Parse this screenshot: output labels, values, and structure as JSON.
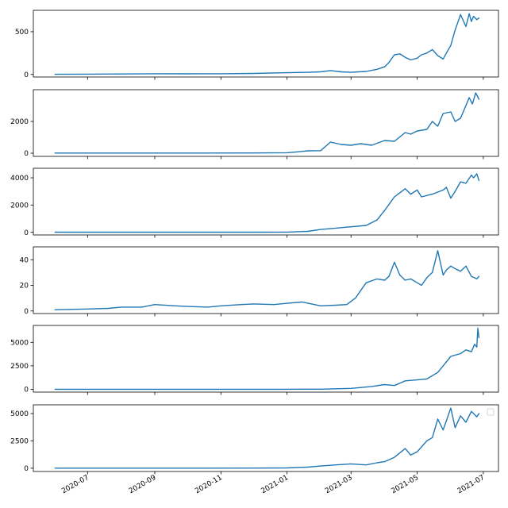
{
  "colors": {
    "line": "#1f77b4",
    "axes": "#000000",
    "background": "#ffffff"
  },
  "x_axis": {
    "type": "date",
    "range": [
      "2020-05-12",
      "2021-07-15"
    ],
    "ticks": [
      {
        "date": "2020-07-01",
        "label": "2020-07"
      },
      {
        "date": "2020-09-01",
        "label": "2020-09"
      },
      {
        "date": "2020-11-01",
        "label": "2020-11"
      },
      {
        "date": "2021-01-01",
        "label": "2021-01"
      },
      {
        "date": "2021-03-01",
        "label": "2021-03"
      },
      {
        "date": "2021-05-01",
        "label": "2021-05"
      },
      {
        "date": "2021-07-01",
        "label": "2021-07"
      }
    ],
    "label_rotation": "30 degrees, shown only on bottom panel",
    "sharex": true
  },
  "chart_data": [
    {
      "type": "line",
      "ylim": [
        -30,
        750
      ],
      "yticks": [
        {
          "value": 0,
          "label": "0"
        },
        {
          "value": 500,
          "label": "500"
        }
      ],
      "grid": false,
      "series": [
        {
          "x": [
            "2020-06-01",
            "2020-07-01",
            "2020-08-01",
            "2020-09-01",
            "2020-10-01",
            "2020-11-01",
            "2020-12-01",
            "2021-01-01",
            "2021-01-20",
            "2021-02-01",
            "2021-02-10",
            "2021-02-20",
            "2021-03-01",
            "2021-03-15",
            "2021-03-25",
            "2021-04-01",
            "2021-04-05",
            "2021-04-10",
            "2021-04-15",
            "2021-04-20",
            "2021-04-25",
            "2021-05-01",
            "2021-05-05",
            "2021-05-10",
            "2021-05-15",
            "2021-05-20",
            "2021-05-25",
            "2021-05-28",
            "2021-06-01",
            "2021-06-05",
            "2021-06-10",
            "2021-06-15",
            "2021-06-18",
            "2021-06-20",
            "2021-06-22",
            "2021-06-25",
            "2021-06-27"
          ],
          "y": [
            2,
            3,
            5,
            8,
            7,
            8,
            12,
            20,
            25,
            30,
            45,
            30,
            25,
            35,
            60,
            90,
            140,
            230,
            240,
            200,
            170,
            190,
            230,
            250,
            290,
            220,
            180,
            250,
            340,
            520,
            700,
            560,
            710,
            620,
            680,
            640,
            660
          ]
        }
      ]
    },
    {
      "type": "line",
      "ylim": [
        -200,
        4000
      ],
      "yticks": [
        {
          "value": 0,
          "label": "0"
        },
        {
          "value": 2000,
          "label": "2000"
        }
      ],
      "grid": false,
      "series": [
        {
          "x": [
            "2020-06-01",
            "2020-08-01",
            "2020-10-01",
            "2020-12-01",
            "2021-01-01",
            "2021-01-10",
            "2021-01-20",
            "2021-02-01",
            "2021-02-05",
            "2021-02-10",
            "2021-02-20",
            "2021-03-01",
            "2021-03-10",
            "2021-03-20",
            "2021-04-01",
            "2021-04-10",
            "2021-04-20",
            "2021-04-25",
            "2021-05-01",
            "2021-05-10",
            "2021-05-15",
            "2021-05-20",
            "2021-05-25",
            "2021-06-01",
            "2021-06-05",
            "2021-06-10",
            "2021-06-15",
            "2021-06-18",
            "2021-06-21",
            "2021-06-24",
            "2021-06-27"
          ],
          "y": [
            10,
            10,
            12,
            15,
            30,
            80,
            150,
            160,
            400,
            700,
            550,
            500,
            600,
            500,
            800,
            750,
            1300,
            1200,
            1400,
            1500,
            2000,
            1700,
            2500,
            2600,
            2000,
            2200,
            3000,
            3500,
            3100,
            3800,
            3400
          ]
        }
      ]
    },
    {
      "type": "line",
      "ylim": [
        -200,
        4700
      ],
      "yticks": [
        {
          "value": 0,
          "label": "0"
        },
        {
          "value": 2000,
          "label": "2000"
        },
        {
          "value": 4000,
          "label": "4000"
        }
      ],
      "grid": false,
      "series": [
        {
          "x": [
            "2020-06-01",
            "2020-08-01",
            "2020-10-01",
            "2020-12-01",
            "2021-01-01",
            "2021-01-20",
            "2021-02-01",
            "2021-02-15",
            "2021-03-01",
            "2021-03-15",
            "2021-03-25",
            "2021-04-01",
            "2021-04-10",
            "2021-04-15",
            "2021-04-20",
            "2021-04-25",
            "2021-05-01",
            "2021-05-05",
            "2021-05-15",
            "2021-05-25",
            "2021-05-28",
            "2021-06-01",
            "2021-06-05",
            "2021-06-10",
            "2021-06-15",
            "2021-06-20",
            "2021-06-22",
            "2021-06-25",
            "2021-06-27"
          ],
          "y": [
            2,
            2,
            3,
            5,
            10,
            60,
            200,
            300,
            400,
            500,
            900,
            1600,
            2600,
            2900,
            3200,
            2800,
            3100,
            2600,
            2800,
            3100,
            3300,
            2500,
            3000,
            3700,
            3600,
            4200,
            4000,
            4300,
            3800
          ]
        }
      ]
    },
    {
      "type": "line",
      "ylim": [
        -2,
        50
      ],
      "yticks": [
        {
          "value": 0,
          "label": "0"
        },
        {
          "value": 20,
          "label": "20"
        },
        {
          "value": 40,
          "label": "40"
        }
      ],
      "grid": false,
      "series": [
        {
          "x": [
            "2020-06-01",
            "2020-07-01",
            "2020-07-20",
            "2020-08-01",
            "2020-08-20",
            "2020-09-01",
            "2020-09-20",
            "2020-10-01",
            "2020-10-20",
            "2020-11-01",
            "2020-11-20",
            "2020-12-01",
            "2020-12-20",
            "2021-01-01",
            "2021-01-15",
            "2021-02-01",
            "2021-02-15",
            "2021-02-25",
            "2021-03-05",
            "2021-03-15",
            "2021-03-25",
            "2021-04-01",
            "2021-04-05",
            "2021-04-10",
            "2021-04-15",
            "2021-04-20",
            "2021-04-25",
            "2021-05-01",
            "2021-05-05",
            "2021-05-10",
            "2021-05-15",
            "2021-05-20",
            "2021-05-25",
            "2021-05-28",
            "2021-06-01",
            "2021-06-05",
            "2021-06-10",
            "2021-06-15",
            "2021-06-20",
            "2021-06-25",
            "2021-06-27"
          ],
          "y": [
            1,
            1.5,
            2,
            3,
            3,
            5,
            4,
            3.5,
            3,
            4,
            5,
            5.5,
            5,
            6,
            7,
            4,
            4.5,
            5,
            10,
            22,
            25,
            24,
            27,
            38,
            28,
            24,
            25,
            22,
            20,
            26,
            30,
            47,
            28,
            32,
            35,
            33,
            31,
            35,
            27,
            25,
            27
          ]
        }
      ]
    },
    {
      "type": "line",
      "ylim": [
        -300,
        6800
      ],
      "yticks": [
        {
          "value": 0,
          "label": "0"
        },
        {
          "value": 2500,
          "label": "2500"
        },
        {
          "value": 5000,
          "label": "5000"
        }
      ],
      "grid": false,
      "series": [
        {
          "x": [
            "2020-06-01",
            "2020-08-01",
            "2020-10-01",
            "2020-12-01",
            "2021-01-01",
            "2021-02-01",
            "2021-03-01",
            "2021-03-20",
            "2021-04-01",
            "2021-04-10",
            "2021-04-20",
            "2021-05-01",
            "2021-05-10",
            "2021-05-20",
            "2021-05-25",
            "2021-06-01",
            "2021-06-10",
            "2021-06-15",
            "2021-06-20",
            "2021-06-23",
            "2021-06-25",
            "2021-06-26",
            "2021-06-27"
          ],
          "y": [
            2,
            2,
            3,
            4,
            5,
            10,
            100,
            300,
            500,
            400,
            900,
            1000,
            1100,
            1800,
            2500,
            3500,
            3800,
            4200,
            4000,
            4800,
            4500,
            6500,
            5500
          ]
        }
      ]
    },
    {
      "type": "line",
      "ylim": [
        -300,
        5800
      ],
      "yticks": [
        {
          "value": 0,
          "label": "0"
        },
        {
          "value": 2500,
          "label": "2500"
        },
        {
          "value": 5000,
          "label": "5000"
        }
      ],
      "grid": false,
      "legend": {
        "placement": "top-right",
        "entries": []
      },
      "series": [
        {
          "x": [
            "2020-06-01",
            "2020-08-01",
            "2020-10-01",
            "2020-12-01",
            "2021-01-01",
            "2021-01-20",
            "2021-02-01",
            "2021-02-15",
            "2021-03-01",
            "2021-03-15",
            "2021-03-25",
            "2021-04-01",
            "2021-04-10",
            "2021-04-20",
            "2021-04-25",
            "2021-05-01",
            "2021-05-10",
            "2021-05-15",
            "2021-05-20",
            "2021-05-25",
            "2021-06-01",
            "2021-06-05",
            "2021-06-10",
            "2021-06-15",
            "2021-06-20",
            "2021-06-25",
            "2021-06-27"
          ],
          "y": [
            2,
            3,
            5,
            10,
            30,
            100,
            200,
            300,
            400,
            300,
            500,
            600,
            1000,
            1800,
            1200,
            1500,
            2500,
            2800,
            4500,
            3500,
            5500,
            3700,
            4800,
            4200,
            5200,
            4700,
            5000
          ]
        }
      ]
    }
  ]
}
